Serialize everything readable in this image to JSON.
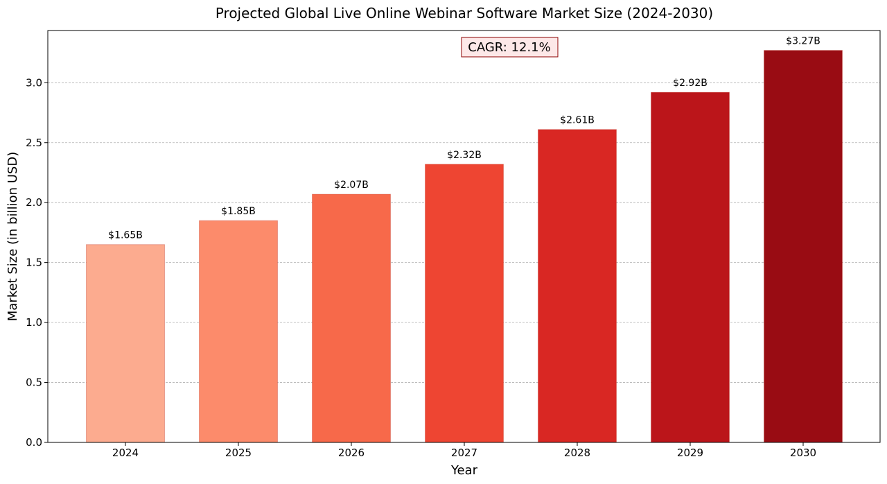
{
  "chart_data": {
    "type": "bar",
    "title": "Projected Global Live Online Webinar Software Market Size (2024-2030)",
    "xlabel": "Year",
    "ylabel": "Market Size (in billion USD)",
    "categories": [
      "2024",
      "2025",
      "2026",
      "2027",
      "2028",
      "2029",
      "2030"
    ],
    "values": [
      1.65,
      1.85,
      2.07,
      2.32,
      2.61,
      2.92,
      3.27
    ],
    "data_labels": [
      "$1.65B",
      "$1.85B",
      "$2.07B",
      "$2.32B",
      "$2.61B",
      "$2.92B",
      "$3.27B"
    ],
    "bar_colors": [
      "#fcab8f",
      "#fc8b6b",
      "#f7694a",
      "#ee4532",
      "#d92723",
      "#bb151a",
      "#990c13"
    ],
    "ylim": [
      0,
      3.43
    ],
    "yticks": [
      0.0,
      0.5,
      1.0,
      1.5,
      2.0,
      2.5,
      3.0
    ],
    "ytick_labels": [
      "0.0",
      "0.5",
      "1.0",
      "1.5",
      "2.0",
      "2.5",
      "3.0"
    ],
    "grid": "y-dashed",
    "annotation": {
      "text": "CAGR: 12.1%",
      "position": "top-center",
      "box_fill": "#fde8e8",
      "box_edge": "#8b0000",
      "text_color": "#8b0000"
    }
  }
}
